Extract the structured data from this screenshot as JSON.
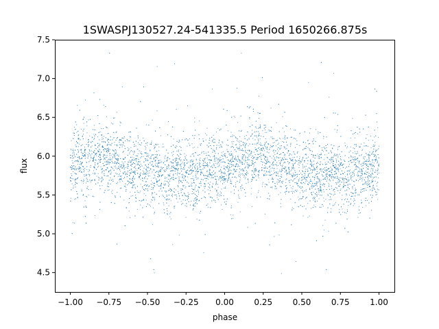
{
  "chart_data": {
    "type": "scatter",
    "title": "1SWASPJ130527.24-541335.5 Period 1650266.875s",
    "xlabel": "phase",
    "ylabel": "flux",
    "xlim": [
      -1.1,
      1.1
    ],
    "ylim": [
      4.25,
      7.5
    ],
    "xticks": [
      -1.0,
      -0.75,
      -0.5,
      -0.25,
      0.0,
      0.25,
      0.5,
      0.75,
      1.0
    ],
    "xtick_labels": [
      "−1.00",
      "−0.75",
      "−0.50",
      "−0.25",
      "0.00",
      "0.25",
      "0.50",
      "0.75",
      "1.00"
    ],
    "yticks": [
      4.5,
      5.0,
      5.5,
      6.0,
      6.5,
      7.0,
      7.5
    ],
    "ytick_labels": [
      "4.5",
      "5.0",
      "5.5",
      "6.0",
      "6.5",
      "7.0",
      "7.5"
    ],
    "grid": false,
    "marker_color": "#1f77b4",
    "series": [
      {
        "x_range": [
          -1.0,
          1.0
        ],
        "y_range": [
          4.4,
          7.35
        ],
        "points": [
          [
            -1.0,
            5.85
          ],
          [
            -0.95,
            5.95
          ],
          [
            -0.9,
            5.9
          ],
          [
            -0.85,
            5.95
          ],
          [
            -0.8,
            6.0
          ],
          [
            -0.75,
            6.0
          ],
          [
            -0.7,
            5.95
          ],
          [
            -0.65,
            5.9
          ],
          [
            -0.6,
            5.85
          ],
          [
            -0.55,
            5.85
          ],
          [
            -0.5,
            5.8
          ],
          [
            -0.45,
            5.8
          ],
          [
            -0.4,
            5.75
          ],
          [
            -0.35,
            5.75
          ],
          [
            -0.3,
            5.8
          ],
          [
            -0.25,
            5.75
          ],
          [
            -0.2,
            5.75
          ],
          [
            -0.15,
            5.8
          ],
          [
            -0.1,
            5.8
          ],
          [
            -0.05,
            5.85
          ],
          [
            0.0,
            5.85
          ],
          [
            0.05,
            5.9
          ],
          [
            0.1,
            5.9
          ],
          [
            0.15,
            5.95
          ],
          [
            0.2,
            6.0
          ],
          [
            0.25,
            6.0
          ],
          [
            0.3,
            5.95
          ],
          [
            0.35,
            5.9
          ],
          [
            0.4,
            5.85
          ],
          [
            0.45,
            5.85
          ],
          [
            0.5,
            5.8
          ],
          [
            0.55,
            5.8
          ],
          [
            0.6,
            5.75
          ],
          [
            0.65,
            5.75
          ],
          [
            0.7,
            5.8
          ],
          [
            0.75,
            5.75
          ],
          [
            0.8,
            5.75
          ],
          [
            0.85,
            5.75
          ],
          [
            0.9,
            5.8
          ],
          [
            0.95,
            5.8
          ],
          [
            1.0,
            5.85
          ]
        ]
      }
    ]
  }
}
